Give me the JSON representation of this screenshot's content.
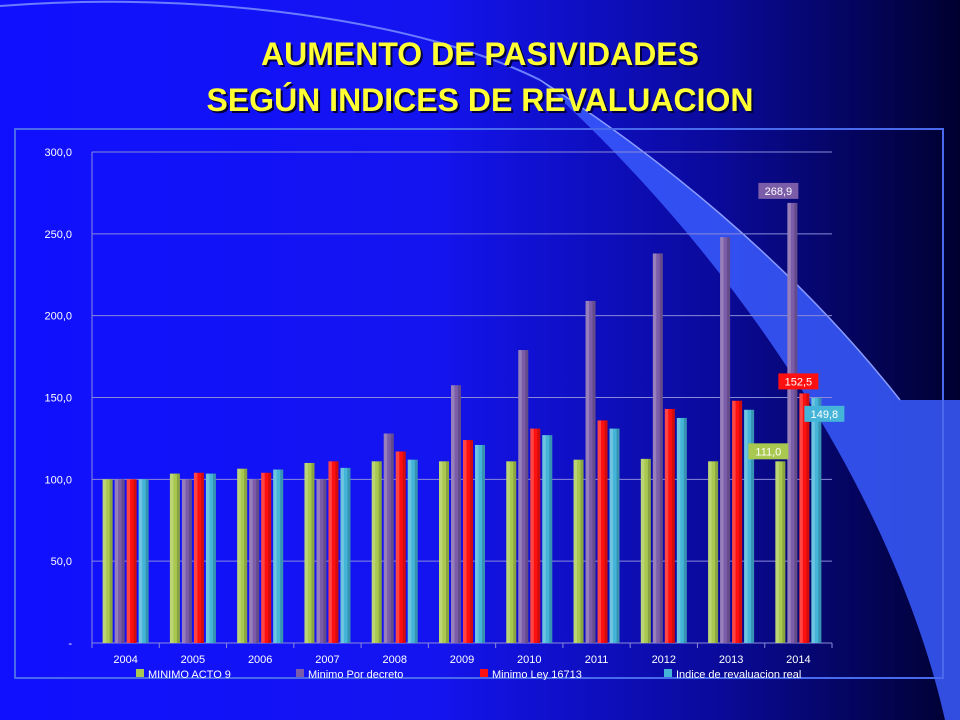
{
  "slide": {
    "title_line1": "AUMENTO DE PASIVIDADES",
    "title_line2": "SEGÚN INDICES DE REVALUACION"
  },
  "chart_data": {
    "type": "bar",
    "categories": [
      "2004",
      "2005",
      "2006",
      "2007",
      "2008",
      "2009",
      "2010",
      "2011",
      "2012",
      "2013",
      "2014"
    ],
    "ylim": [
      0,
      300
    ],
    "y_ticks": [
      {
        "value": 0,
        "label": "-"
      },
      {
        "value": 50,
        "label": "50,0"
      },
      {
        "value": 100,
        "label": "100,0"
      },
      {
        "value": 150,
        "label": "150,0"
      },
      {
        "value": 200,
        "label": "200,0"
      },
      {
        "value": 250,
        "label": "250,0"
      },
      {
        "value": 300,
        "label": "300,0"
      }
    ],
    "grid": true,
    "legend_position": "bottom",
    "series": [
      {
        "name": "MINIMO ACTO 9",
        "color": "#a8c850",
        "values": [
          100,
          103.5,
          106.5,
          110,
          111,
          111,
          111,
          112,
          112.5,
          111,
          111.0
        ]
      },
      {
        "name": "Minimo Por decreto",
        "color": "#7a5ca8",
        "values": [
          100,
          100,
          100,
          100,
          128,
          157.5,
          179,
          209,
          238,
          248,
          268.9
        ]
      },
      {
        "name": "Minimo Ley 16713",
        "color": "#ff1010",
        "values": [
          100,
          104,
          104,
          111,
          117,
          124,
          131,
          136,
          143,
          148,
          152.5
        ]
      },
      {
        "name": "Indice de revaluacion real",
        "color": "#44b4d8",
        "values": [
          100,
          103.5,
          106,
          107,
          112,
          121,
          127,
          131,
          137.5,
          142.5,
          149.8
        ]
      }
    ],
    "data_labels": [
      {
        "series": 1,
        "index": 10,
        "text": "268,9"
      },
      {
        "series": 2,
        "index": 10,
        "text": "152,5"
      },
      {
        "series": 3,
        "index": 10,
        "text": "149,8"
      },
      {
        "series": 0,
        "index": 10,
        "text": "111,0"
      }
    ]
  }
}
